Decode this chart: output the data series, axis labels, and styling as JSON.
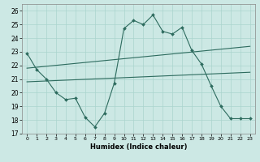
{
  "title": "",
  "xlabel": "Humidex (Indice chaleur)",
  "bg_color": "#cce8e4",
  "line_color": "#2d6b5e",
  "grid_color": "#aad4ce",
  "xlim": [
    -0.5,
    23.5
  ],
  "ylim": [
    17,
    26.5
  ],
  "yticks": [
    17,
    18,
    19,
    20,
    21,
    22,
    23,
    24,
    25,
    26
  ],
  "xticks": [
    0,
    1,
    2,
    3,
    4,
    5,
    6,
    7,
    8,
    9,
    10,
    11,
    12,
    13,
    14,
    15,
    16,
    17,
    18,
    19,
    20,
    21,
    22,
    23
  ],
  "line1_x": [
    0,
    1,
    2,
    3,
    4,
    5,
    6,
    7,
    8,
    9,
    10,
    11,
    12,
    13,
    14,
    15,
    16,
    17,
    18,
    19,
    20,
    21,
    22,
    23
  ],
  "line1_y": [
    22.9,
    21.7,
    21.0,
    20.0,
    19.5,
    19.6,
    18.2,
    17.5,
    18.5,
    20.7,
    24.7,
    25.3,
    25.0,
    25.7,
    24.5,
    24.3,
    24.8,
    23.1,
    22.1,
    20.5,
    19.0,
    18.1,
    18.1,
    18.1
  ],
  "line2_x": [
    0,
    23
  ],
  "line2_y": [
    21.8,
    23.4
  ],
  "line3_x": [
    0,
    23
  ],
  "line3_y": [
    20.8,
    21.5
  ]
}
